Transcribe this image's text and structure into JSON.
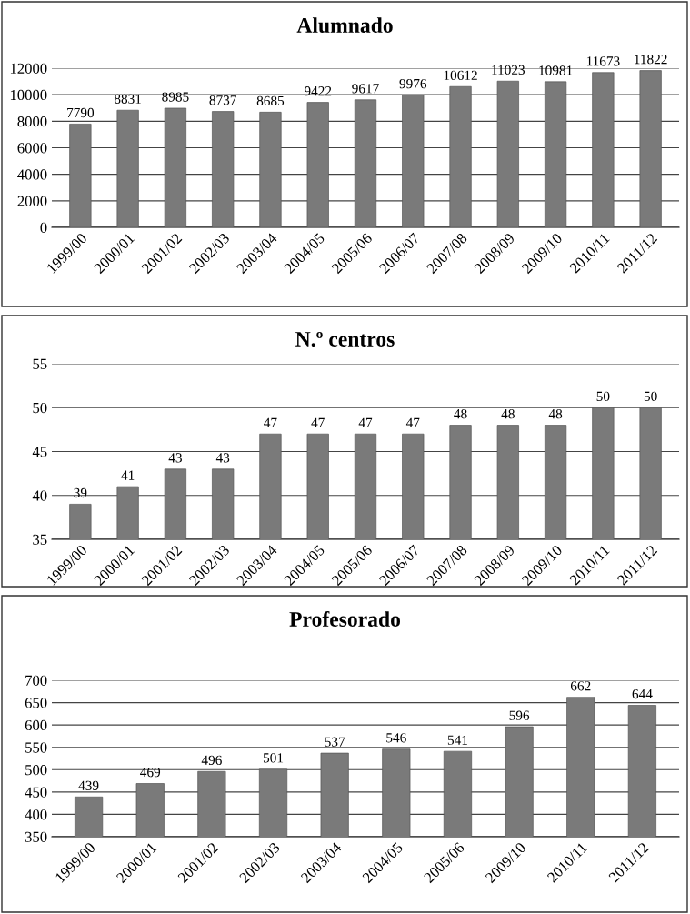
{
  "chart_data": [
    {
      "type": "bar",
      "title": "Alumnado",
      "categories": [
        "1999/00",
        "2000/01",
        "2001/02",
        "2002/03",
        "2003/04",
        "2004/05",
        "2005/06",
        "2006/07",
        "2007/08",
        "2008/09",
        "2009/10",
        "2010/11",
        "2011/12"
      ],
      "values": [
        7790,
        8831,
        8985,
        8737,
        8685,
        9422,
        9617,
        9976,
        10612,
        11023,
        10981,
        11673,
        11822
      ],
      "color": "#7a7a7a",
      "ylim": [
        0,
        12000
      ],
      "yticks": [
        0,
        2000,
        4000,
        6000,
        8000,
        10000,
        12000
      ],
      "grid": "y",
      "data_labels": true
    },
    {
      "type": "bar",
      "title": "N.º centros",
      "categories": [
        "1999/00",
        "2000/01",
        "2001/02",
        "2002/03",
        "2003/04",
        "2004/05",
        "2005/06",
        "2006/07",
        "2007/08",
        "2008/09",
        "2009/10",
        "2010/11",
        "2011/12"
      ],
      "values": [
        39,
        41,
        43,
        43,
        47,
        47,
        47,
        47,
        48,
        48,
        48,
        50,
        50
      ],
      "color": "#7a7a7a",
      "ylim": [
        35,
        55
      ],
      "yticks": [
        35,
        40,
        45,
        50,
        55
      ],
      "grid": "y",
      "data_labels": true
    },
    {
      "type": "bar",
      "title": "Profesorado",
      "categories": [
        "1999/00",
        "2000/01",
        "2001/02",
        "2002/03",
        "2003/04",
        "2004/05",
        "2005/06",
        "2009/10",
        "2010/11",
        "2011/12"
      ],
      "values": [
        439,
        469,
        496,
        501,
        537,
        546,
        541,
        596,
        662,
        644
      ],
      "color": "#7a7a7a",
      "ylim": [
        350,
        700
      ],
      "yticks": [
        350,
        400,
        450,
        500,
        550,
        600,
        650,
        700
      ],
      "grid": "y",
      "data_labels": true
    }
  ]
}
